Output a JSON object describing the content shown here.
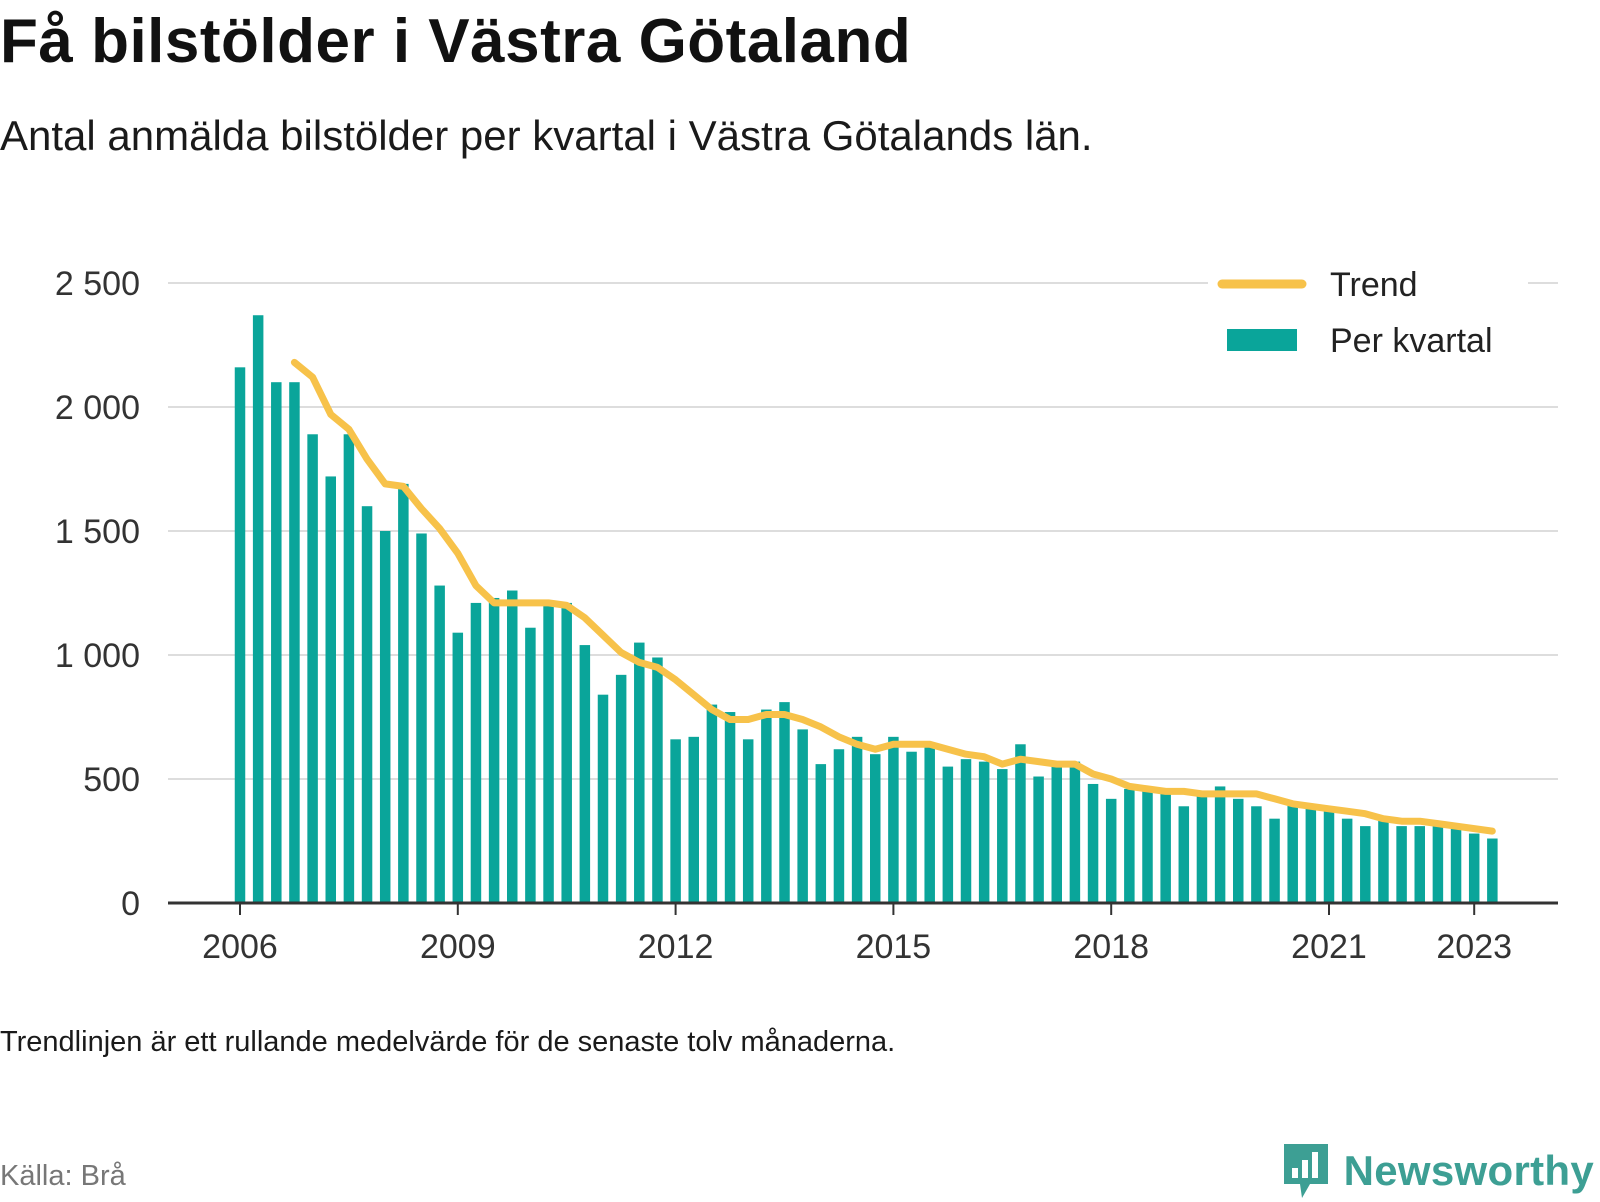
{
  "header": {
    "title": "Få bilstölder i Västra Götaland",
    "subtitle": "Antal anmälda bilstölder per kvartal i Västra Götalands län."
  },
  "footer": {
    "note": "Trendlinjen är ett rullande medelvärde för de senaste tolv månaderna.",
    "source": "Källa: Brå",
    "brand": "Newsworthy"
  },
  "colors": {
    "bar": "#0aa59a",
    "trend": "#f7c24a",
    "grid": "#dddddd",
    "axis": "#333333",
    "brand": "#3d9f94"
  },
  "chart_data": {
    "type": "bar",
    "x_start": "2006-Q1",
    "ylim": [
      0,
      2500
    ],
    "yticks": [
      0,
      500,
      1000,
      1500,
      2000,
      2500
    ],
    "ytick_labels": [
      "0",
      "500",
      "1 000",
      "1 500",
      "2 000",
      "2 500"
    ],
    "xticks": [
      "2006",
      "2009",
      "2012",
      "2015",
      "2018",
      "2021",
      "2023"
    ],
    "grid": true,
    "legend_position": "top-right",
    "legend": {
      "trend": "Trend",
      "bars": "Per kvartal"
    },
    "series": [
      {
        "name": "Per kvartal",
        "type": "bar",
        "values": [
          2160,
          2370,
          2100,
          2100,
          1890,
          1720,
          1890,
          1600,
          1500,
          1690,
          1490,
          1280,
          1090,
          1210,
          1230,
          1260,
          1110,
          1210,
          1210,
          1040,
          840,
          920,
          1050,
          990,
          660,
          670,
          800,
          770,
          660,
          780,
          810,
          700,
          560,
          620,
          670,
          600,
          670,
          610,
          630,
          550,
          580,
          570,
          540,
          640,
          510,
          550,
          570,
          480,
          420,
          460,
          460,
          450,
          390,
          440,
          470,
          420,
          390,
          340,
          400,
          380,
          370,
          340,
          310,
          340,
          310,
          310,
          320,
          310,
          280,
          260
        ]
      },
      {
        "name": "Trend",
        "type": "line",
        "values": [
          null,
          null,
          null,
          2180,
          2120,
          1970,
          1910,
          1790,
          1690,
          1680,
          1590,
          1510,
          1410,
          1280,
          1210,
          1210,
          1210,
          1210,
          1200,
          1150,
          1080,
          1010,
          970,
          950,
          900,
          840,
          780,
          740,
          740,
          760,
          760,
          740,
          710,
          670,
          640,
          620,
          640,
          640,
          640,
          620,
          600,
          590,
          560,
          580,
          570,
          560,
          560,
          520,
          500,
          470,
          460,
          450,
          450,
          440,
          440,
          440,
          440,
          420,
          400,
          390,
          380,
          370,
          360,
          340,
          330,
          330,
          320,
          310,
          300,
          290
        ]
      }
    ]
  }
}
